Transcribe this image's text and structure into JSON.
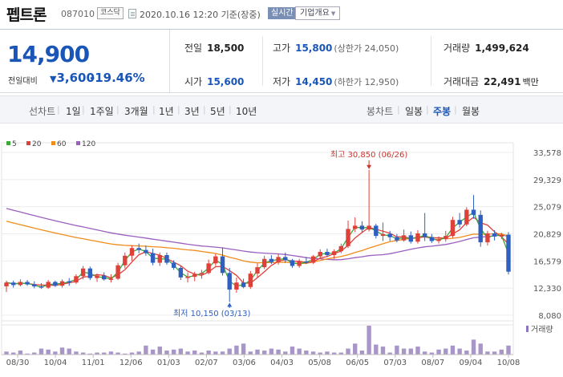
{
  "header": {
    "name": "펩트론",
    "code": "087010",
    "market": "코스닥",
    "datetime": "2020.10.16 12:20 기준(장중)",
    "live_label": "실시간",
    "overview_label": "기업개요"
  },
  "price": {
    "current": "14,900",
    "prev_label": "전일대비",
    "change": "3,600",
    "rate": "-19.46%"
  },
  "stats": {
    "prev_close_label": "전일",
    "prev_close": "18,500",
    "high_label": "고가",
    "high": "15,800",
    "upper_limit": "(상한가 24,050)",
    "volume_label": "거래량",
    "volume": "1,499,624",
    "open_label": "시가",
    "open": "15,600",
    "low_label": "저가",
    "low": "14,450",
    "lower_limit": "(하한가 12,950)",
    "amount_label": "거래대금",
    "amount": "22,491",
    "amount_unit": "백만"
  },
  "tabs": {
    "line_chart_label": "선차트",
    "periods": [
      "1일",
      "1주일",
      "3개월",
      "1년",
      "3년",
      "5년",
      "10년"
    ],
    "candle_chart_label": "봉차트",
    "candle_periods": [
      "일봉",
      "주봉",
      "월봉"
    ],
    "selected_candle": "주봉"
  },
  "chart_data": {
    "type": "candlestick",
    "legend": [
      {
        "name": "5",
        "color": "#3aa83a"
      },
      {
        "name": "20",
        "color": "#e0403a"
      },
      {
        "name": "60",
        "color": "#f08c1a"
      },
      {
        "name": "120",
        "color": "#9b5fc0"
      }
    ],
    "y_ticks": [
      "33,578",
      "29,329",
      "25,079",
      "20,829",
      "16,579",
      "12,330",
      "8,080"
    ],
    "ylim": [
      8080,
      33578
    ],
    "x_ticks": [
      "08/30",
      "10/04",
      "11/01",
      "12/06",
      "01/03",
      "02/07",
      "03/06",
      "04/03",
      "05/08",
      "06/05",
      "07/03",
      "08/07",
      "09/04",
      "10/08"
    ],
    "high_annotation": "최고 30,850 (06/26)",
    "low_annotation": "최저 10,150 (03/13)",
    "volume_label": "거래량",
    "colors": {
      "up": "#e0403a",
      "down": "#2f5fbf",
      "volume": "#a996c9"
    },
    "candles": [
      {
        "o": 12600,
        "h": 13500,
        "l": 11700,
        "c": 13200
      },
      {
        "o": 13200,
        "h": 13500,
        "l": 12400,
        "c": 12800
      },
      {
        "o": 12800,
        "h": 13700,
        "l": 12600,
        "c": 13300
      },
      {
        "o": 13300,
        "h": 13600,
        "l": 12700,
        "c": 12900
      },
      {
        "o": 12900,
        "h": 13400,
        "l": 12300,
        "c": 12600
      },
      {
        "o": 12600,
        "h": 13100,
        "l": 12200,
        "c": 12400
      },
      {
        "o": 12400,
        "h": 13600,
        "l": 12200,
        "c": 13300
      },
      {
        "o": 13300,
        "h": 13500,
        "l": 12500,
        "c": 12700
      },
      {
        "o": 12700,
        "h": 13700,
        "l": 12400,
        "c": 13400
      },
      {
        "o": 13400,
        "h": 13900,
        "l": 12700,
        "c": 13200
      },
      {
        "o": 13200,
        "h": 14500,
        "l": 13000,
        "c": 14200
      },
      {
        "o": 14200,
        "h": 15800,
        "l": 13700,
        "c": 15400
      },
      {
        "o": 15400,
        "h": 15700,
        "l": 13600,
        "c": 13900
      },
      {
        "o": 13900,
        "h": 14600,
        "l": 13300,
        "c": 14300
      },
      {
        "o": 14300,
        "h": 14800,
        "l": 13500,
        "c": 13700
      },
      {
        "o": 13700,
        "h": 14500,
        "l": 13200,
        "c": 13800
      },
      {
        "o": 13800,
        "h": 16300,
        "l": 13600,
        "c": 15900
      },
      {
        "o": 15900,
        "h": 17900,
        "l": 15400,
        "c": 17400
      },
      {
        "o": 17400,
        "h": 19000,
        "l": 16600,
        "c": 18600
      },
      {
        "o": 18600,
        "h": 19300,
        "l": 17800,
        "c": 18300
      },
      {
        "o": 18300,
        "h": 19000,
        "l": 17400,
        "c": 17800
      },
      {
        "o": 17800,
        "h": 18500,
        "l": 15900,
        "c": 16300
      },
      {
        "o": 16300,
        "h": 17900,
        "l": 15800,
        "c": 17500
      },
      {
        "o": 17500,
        "h": 17900,
        "l": 16000,
        "c": 16300
      },
      {
        "o": 16300,
        "h": 16700,
        "l": 15200,
        "c": 15500
      },
      {
        "o": 15500,
        "h": 15800,
        "l": 13600,
        "c": 14000
      },
      {
        "o": 14000,
        "h": 14800,
        "l": 13200,
        "c": 14100
      },
      {
        "o": 14100,
        "h": 14900,
        "l": 13400,
        "c": 14500
      },
      {
        "o": 14500,
        "h": 15200,
        "l": 13800,
        "c": 14700
      },
      {
        "o": 14700,
        "h": 16800,
        "l": 14500,
        "c": 16200
      },
      {
        "o": 16200,
        "h": 17700,
        "l": 15800,
        "c": 17300
      },
      {
        "o": 17300,
        "h": 18700,
        "l": 14300,
        "c": 14700
      },
      {
        "o": 14700,
        "h": 15500,
        "l": 10150,
        "c": 12100
      },
      {
        "o": 12100,
        "h": 14000,
        "l": 11600,
        "c": 13200
      },
      {
        "o": 13200,
        "h": 13800,
        "l": 12300,
        "c": 12500
      },
      {
        "o": 12500,
        "h": 15000,
        "l": 12200,
        "c": 14600
      },
      {
        "o": 14600,
        "h": 16200,
        "l": 13900,
        "c": 15600
      },
      {
        "o": 15600,
        "h": 17400,
        "l": 15300,
        "c": 16900
      },
      {
        "o": 16900,
        "h": 17500,
        "l": 16100,
        "c": 16400
      },
      {
        "o": 16400,
        "h": 17700,
        "l": 16000,
        "c": 17200
      },
      {
        "o": 17200,
        "h": 17900,
        "l": 16300,
        "c": 16700
      },
      {
        "o": 16700,
        "h": 16900,
        "l": 15500,
        "c": 15800
      },
      {
        "o": 15800,
        "h": 16900,
        "l": 15500,
        "c": 16500
      },
      {
        "o": 16500,
        "h": 17200,
        "l": 16100,
        "c": 16300
      },
      {
        "o": 16300,
        "h": 17500,
        "l": 16100,
        "c": 17300
      },
      {
        "o": 17300,
        "h": 18400,
        "l": 17000,
        "c": 18000
      },
      {
        "o": 18000,
        "h": 18500,
        "l": 17200,
        "c": 17500
      },
      {
        "o": 17500,
        "h": 18400,
        "l": 16900,
        "c": 18100
      },
      {
        "o": 18100,
        "h": 19300,
        "l": 17800,
        "c": 18900
      },
      {
        "o": 18900,
        "h": 22900,
        "l": 18600,
        "c": 21600
      },
      {
        "o": 21600,
        "h": 23400,
        "l": 21100,
        "c": 22100
      },
      {
        "o": 22100,
        "h": 22800,
        "l": 21000,
        "c": 21500
      },
      {
        "o": 21500,
        "h": 30850,
        "l": 21200,
        "c": 22100
      },
      {
        "o": 22100,
        "h": 22400,
        "l": 20100,
        "c": 20500
      },
      {
        "o": 20500,
        "h": 22600,
        "l": 19700,
        "c": 20800
      },
      {
        "o": 20800,
        "h": 21300,
        "l": 19700,
        "c": 20300
      },
      {
        "o": 20300,
        "h": 20800,
        "l": 19500,
        "c": 19800
      },
      {
        "o": 19800,
        "h": 21500,
        "l": 19600,
        "c": 20600
      },
      {
        "o": 20600,
        "h": 21200,
        "l": 19300,
        "c": 19600
      },
      {
        "o": 19600,
        "h": 21400,
        "l": 19300,
        "c": 20900
      },
      {
        "o": 20900,
        "h": 24100,
        "l": 19700,
        "c": 20300
      },
      {
        "o": 20300,
        "h": 20800,
        "l": 19400,
        "c": 19700
      },
      {
        "o": 19700,
        "h": 20400,
        "l": 19300,
        "c": 20000
      },
      {
        "o": 20000,
        "h": 21300,
        "l": 19600,
        "c": 20500
      },
      {
        "o": 20500,
        "h": 23500,
        "l": 20200,
        "c": 23000
      },
      {
        "o": 23000,
        "h": 24100,
        "l": 21800,
        "c": 22300
      },
      {
        "o": 22300,
        "h": 25000,
        "l": 22000,
        "c": 24600
      },
      {
        "o": 24600,
        "h": 26900,
        "l": 23200,
        "c": 23800
      },
      {
        "o": 23800,
        "h": 24500,
        "l": 18800,
        "c": 19500
      },
      {
        "o": 19500,
        "h": 21300,
        "l": 19000,
        "c": 20900
      },
      {
        "o": 20900,
        "h": 21400,
        "l": 19800,
        "c": 20400
      },
      {
        "o": 20400,
        "h": 21000,
        "l": 20000,
        "c": 20700
      },
      {
        "o": 20700,
        "h": 21100,
        "l": 14450,
        "c": 14900
      }
    ],
    "volumes": [
      3,
      2,
      4,
      1,
      2,
      6,
      5,
      3,
      7,
      6,
      3,
      2,
      1,
      2,
      2,
      3,
      2,
      1,
      2,
      3,
      9,
      5,
      8,
      4,
      5,
      6,
      3,
      4,
      2,
      4,
      3,
      3,
      6,
      9,
      11,
      3,
      5,
      4,
      6,
      5,
      3,
      8,
      6,
      4,
      3,
      2,
      3,
      2,
      2,
      6,
      11,
      4,
      29,
      10,
      8,
      2,
      9,
      6,
      6,
      8,
      3,
      2,
      5,
      6,
      9,
      6,
      4,
      15,
      11,
      3,
      3,
      5,
      9
    ]
  }
}
